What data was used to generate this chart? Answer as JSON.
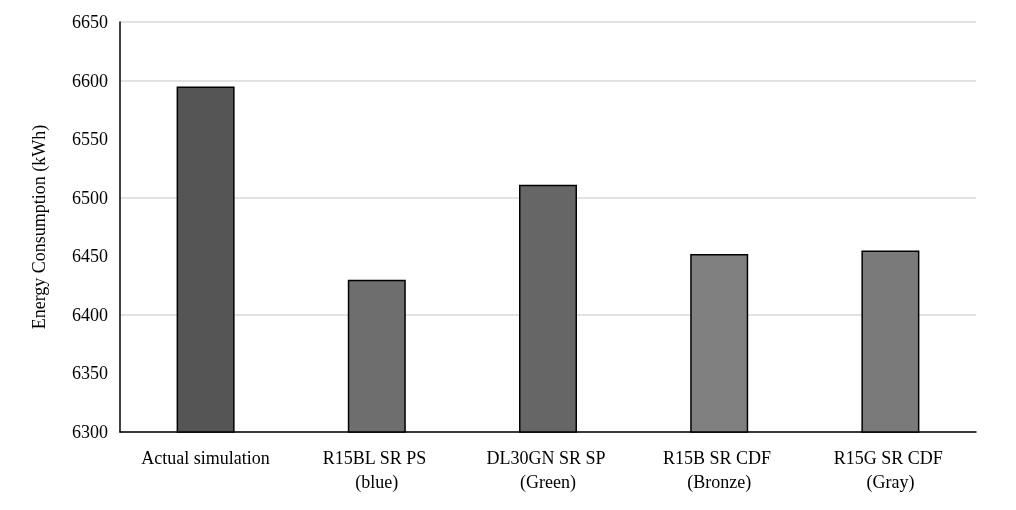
{
  "chart_data": {
    "type": "bar",
    "ylabel": "Energy Consumption (kWh)",
    "categories": [
      "Actual simulation",
      "R15BL SR PS (blue)",
      "DL30GN SR SP (Green)",
      "R15B SR CDF (Bronze)",
      "R15G SR CDF (Gray)"
    ],
    "values": [
      6595,
      6430,
      6511,
      6452,
      6455
    ],
    "colors": [
      "#555555",
      "#6e6e6e",
      "#666666",
      "#808080",
      "#7a7a7a"
    ],
    "ylim": [
      6300,
      6650
    ],
    "yticks": [
      6300,
      6350,
      6400,
      6450,
      6500,
      6550,
      6600,
      6650
    ],
    "grid": "y"
  }
}
